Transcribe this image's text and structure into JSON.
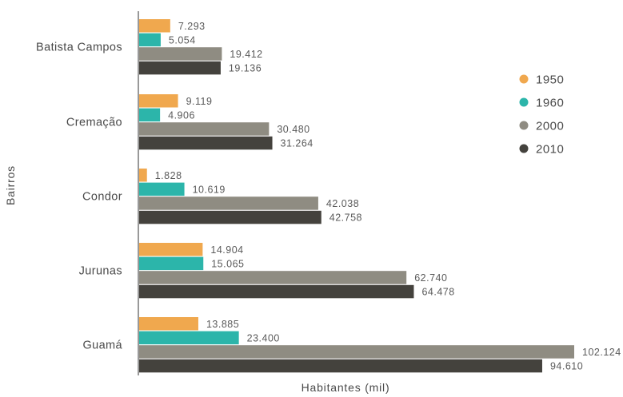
{
  "chart_data": {
    "type": "bar",
    "orientation": "horizontal",
    "title": "",
    "xlabel": "Habitantes (mil)",
    "ylabel": "Bairros",
    "categories": [
      "Batista Campos",
      "Cremação",
      "Condor",
      "Jurunas",
      "Guamá"
    ],
    "series": [
      {
        "name": "1950",
        "color": "#f0a84e",
        "values": [
          7.293,
          9.119,
          1.828,
          14.904,
          13.885
        ],
        "labels": [
          "7.293",
          "9.119",
          "1.828",
          "14.904",
          "13.885"
        ]
      },
      {
        "name": "1960",
        "color": "#2cb5aa",
        "values": [
          5.054,
          4.906,
          10.619,
          15.065,
          23.4
        ],
        "labels": [
          "5.054",
          "4.906",
          "10.619",
          "15.065",
          "23.400"
        ]
      },
      {
        "name": "2000",
        "color": "#8f8c82",
        "values": [
          19.412,
          30.48,
          42.038,
          62.74,
          102.124
        ],
        "labels": [
          "19.412",
          "30.480",
          "42.038",
          "62.740",
          "102.124"
        ]
      },
      {
        "name": "2010",
        "color": "#44423d",
        "values": [
          19.136,
          31.264,
          42.758,
          64.478,
          94.61
        ],
        "labels": [
          "19.136",
          "31.264",
          "42.758",
          "64.478",
          "94.610"
        ]
      }
    ],
    "xlim": [
      0,
      102.124
    ],
    "grid": false,
    "legend_position": "right"
  },
  "colors": {
    "axis_line": "#555555"
  }
}
